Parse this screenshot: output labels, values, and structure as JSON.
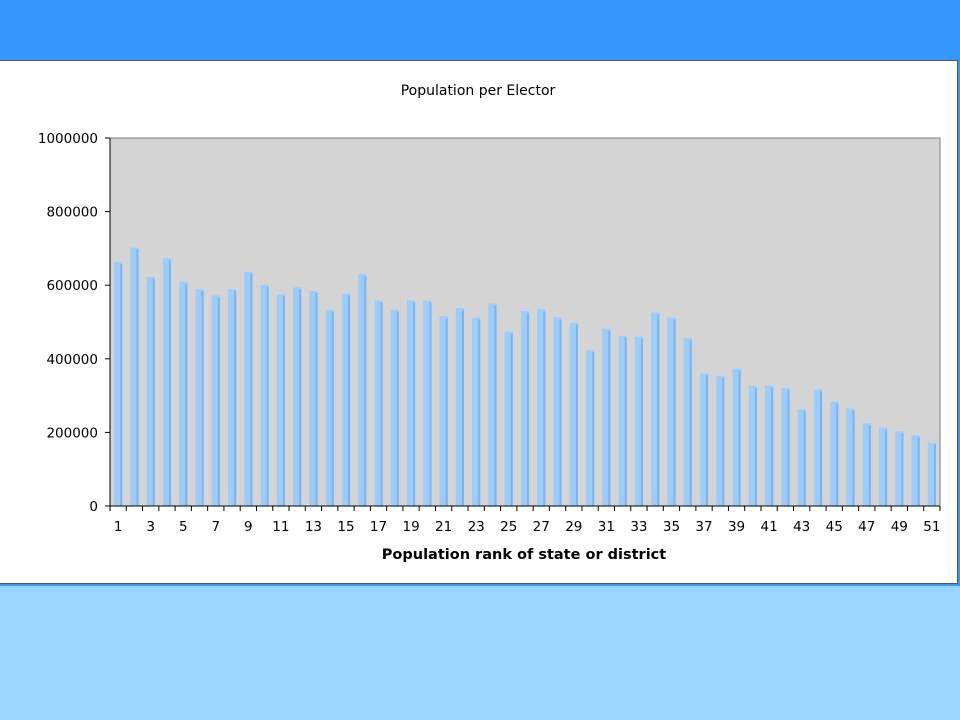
{
  "colors": {
    "slide_background": "#3399ff",
    "bottom_band": "#99d3ff",
    "plot_area": "#d4d4d4",
    "bar_fill": "#99ccff",
    "bar_shade": "#7fb2e6"
  },
  "chart_data": {
    "type": "bar",
    "title": "Population per Elector",
    "xlabel": "Population rank of state or district",
    "ylabel": "",
    "ylim": [
      0,
      1000000
    ],
    "yticks": [
      "0",
      "200000",
      "400000",
      "600000",
      "800000",
      "1000000"
    ],
    "xtick_labels": [
      "1",
      "3",
      "5",
      "7",
      "9",
      "11",
      "13",
      "15",
      "17",
      "19",
      "21",
      "23",
      "25",
      "27",
      "29",
      "31",
      "33",
      "35",
      "37",
      "39",
      "41",
      "43",
      "45",
      "47",
      "49",
      "51"
    ],
    "grid": false,
    "legend": "none",
    "categories": [
      1,
      2,
      3,
      4,
      5,
      6,
      7,
      8,
      9,
      10,
      11,
      12,
      13,
      14,
      15,
      16,
      17,
      18,
      19,
      20,
      21,
      22,
      23,
      24,
      25,
      26,
      27,
      28,
      29,
      30,
      31,
      32,
      33,
      34,
      35,
      36,
      37,
      38,
      39,
      40,
      41,
      42,
      43,
      44,
      45,
      46,
      47,
      48,
      49,
      50,
      51
    ],
    "values": [
      663000,
      702000,
      622000,
      673000,
      610000,
      589000,
      572000,
      589000,
      636000,
      601000,
      576000,
      594000,
      584000,
      533000,
      577000,
      630000,
      558000,
      533000,
      559000,
      558000,
      516000,
      538000,
      512000,
      550000,
      474000,
      530000,
      535000,
      512000,
      498000,
      423000,
      482000,
      462000,
      460000,
      526000,
      512000,
      456000,
      360000,
      353000,
      373000,
      326000,
      327000,
      320000,
      263000,
      317000,
      283000,
      265000,
      225000,
      213000,
      203000,
      192000,
      172000
    ]
  }
}
